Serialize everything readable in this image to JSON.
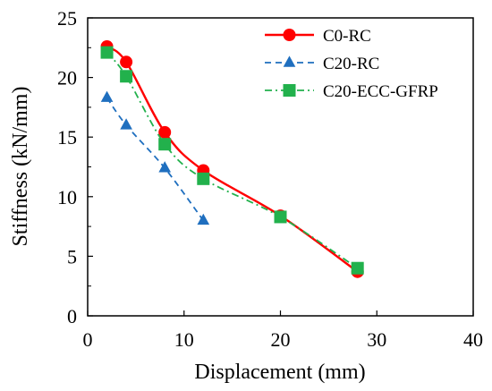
{
  "chart_data": {
    "type": "line",
    "xlabel": "Displacement (mm)",
    "ylabel": "Stiffness (kN/mm)",
    "xlim": [
      0,
      40
    ],
    "ylim": [
      0,
      25
    ],
    "x_ticks": [
      0,
      10,
      20,
      30,
      40
    ],
    "y_ticks": [
      0,
      5,
      10,
      15,
      20,
      25
    ],
    "grid": false,
    "legend_position": "top-right",
    "series": [
      {
        "name": "C0-RC",
        "color": "#ff0000",
        "marker": "circle",
        "line_style": "solid",
        "x": [
          2,
          4,
          8,
          12,
          20,
          28
        ],
        "y": [
          22.6,
          21.3,
          15.4,
          12.2,
          8.4,
          3.7
        ]
      },
      {
        "name": "C20-RC",
        "color": "#1f6fbf",
        "marker": "triangle",
        "line_style": "dashed",
        "x": [
          2,
          4,
          8,
          12
        ],
        "y": [
          18.3,
          16.0,
          12.4,
          8.0
        ]
      },
      {
        "name": "C20-ECC-GFRP",
        "color": "#22b14c",
        "marker": "square",
        "line_style": "dash-dot",
        "x": [
          2,
          4,
          8,
          12,
          20,
          28
        ],
        "y": [
          22.1,
          20.1,
          14.4,
          11.5,
          8.3,
          4.0
        ]
      }
    ]
  }
}
